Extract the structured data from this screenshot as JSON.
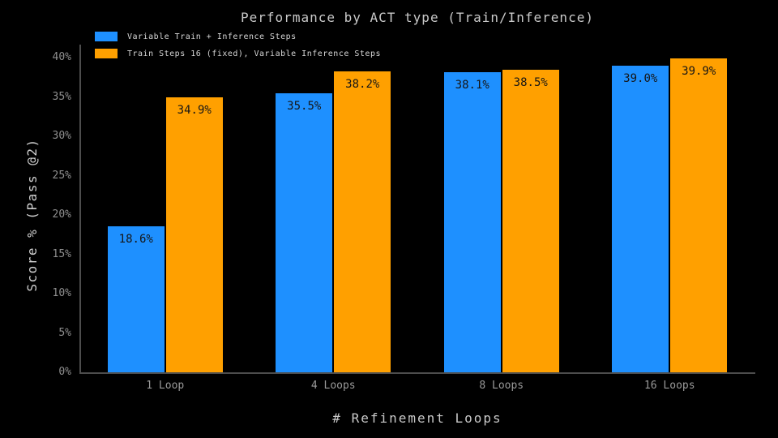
{
  "title": "Performance by ACT type (Train/Inference)",
  "chart_data": {
    "type": "bar",
    "title": "Performance by ACT type (Train/Inference)",
    "xlabel": "# Refinement Loops",
    "ylabel": "Score % (Pass @2)",
    "categories": [
      "1 Loop",
      "4 Loops",
      "8 Loops",
      "16 Loops"
    ],
    "series": [
      {
        "name": "Variable Train + Inference Steps",
        "color": "#1E90FF",
        "values": [
          18.6,
          35.5,
          38.1,
          39.0
        ],
        "labels": [
          "18.6%",
          "35.5%",
          "38.1%",
          "39.0%"
        ]
      },
      {
        "name": "Train Steps 16 (fixed), Variable Inference Steps",
        "color": "#FFA000",
        "values": [
          34.9,
          38.2,
          38.5,
          39.9
        ],
        "labels": [
          "34.9%",
          "38.2%",
          "38.5%",
          "39.9%"
        ]
      }
    ],
    "ylim": [
      0,
      40
    ],
    "yticks": [
      "0%",
      "5%",
      "10%",
      "15%",
      "20%",
      "25%",
      "30%",
      "35%",
      "40%"
    ],
    "grid": false,
    "legend_position": "top-left",
    "colors": {
      "background": "#000000",
      "axis_spine": "#4d4d4d",
      "tick_text": "#8f8f8f",
      "title_text": "#c9c9c9",
      "bar_label_text": "#161616"
    }
  }
}
